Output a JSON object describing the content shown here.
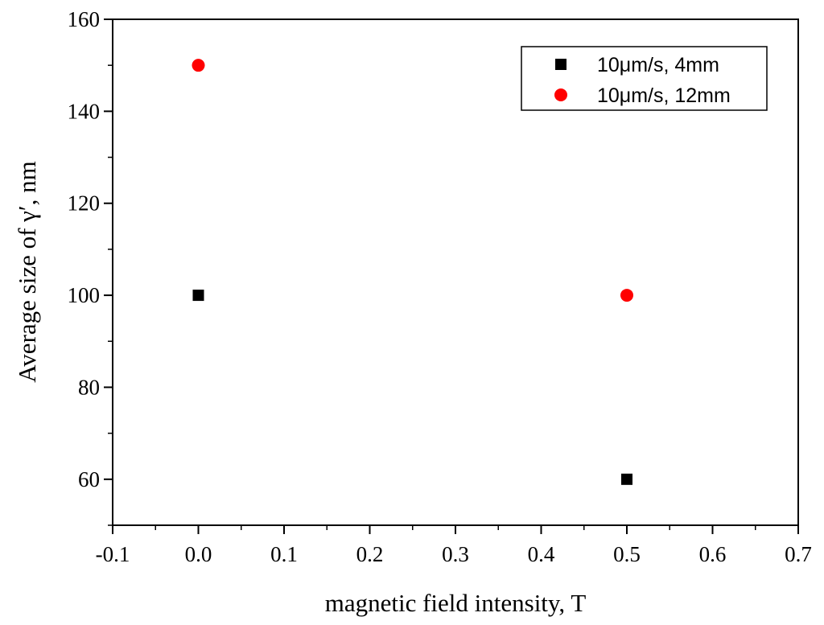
{
  "chart_data": {
    "type": "scatter",
    "title": "",
    "xlabel": "magnetic field intensity, T",
    "ylabel": "Average size of γ′, nm",
    "xlim": [
      -0.1,
      0.7
    ],
    "ylim": [
      50,
      160
    ],
    "xticks": [
      -0.1,
      0.0,
      0.1,
      0.2,
      0.3,
      0.4,
      0.5,
      0.6,
      0.7
    ],
    "xtick_labels": [
      "-0.1",
      "0.0",
      "0.1",
      "0.2",
      "0.3",
      "0.4",
      "0.5",
      "0.6",
      "0.7"
    ],
    "yticks": [
      60,
      80,
      100,
      120,
      140,
      160
    ],
    "ytick_labels": [
      "60",
      "80",
      "100",
      "120",
      "140",
      "160"
    ],
    "grid": false,
    "legend_position": "top-right",
    "series": [
      {
        "name": "10μm/s, 4mm",
        "marker": "square",
        "color": "#000000",
        "x": [
          0.0,
          0.5
        ],
        "y": [
          100,
          60
        ]
      },
      {
        "name": "10μm/s, 12mm",
        "marker": "circle",
        "color": "#ff0000",
        "x": [
          0.0,
          0.5
        ],
        "y": [
          150,
          100
        ]
      }
    ]
  }
}
